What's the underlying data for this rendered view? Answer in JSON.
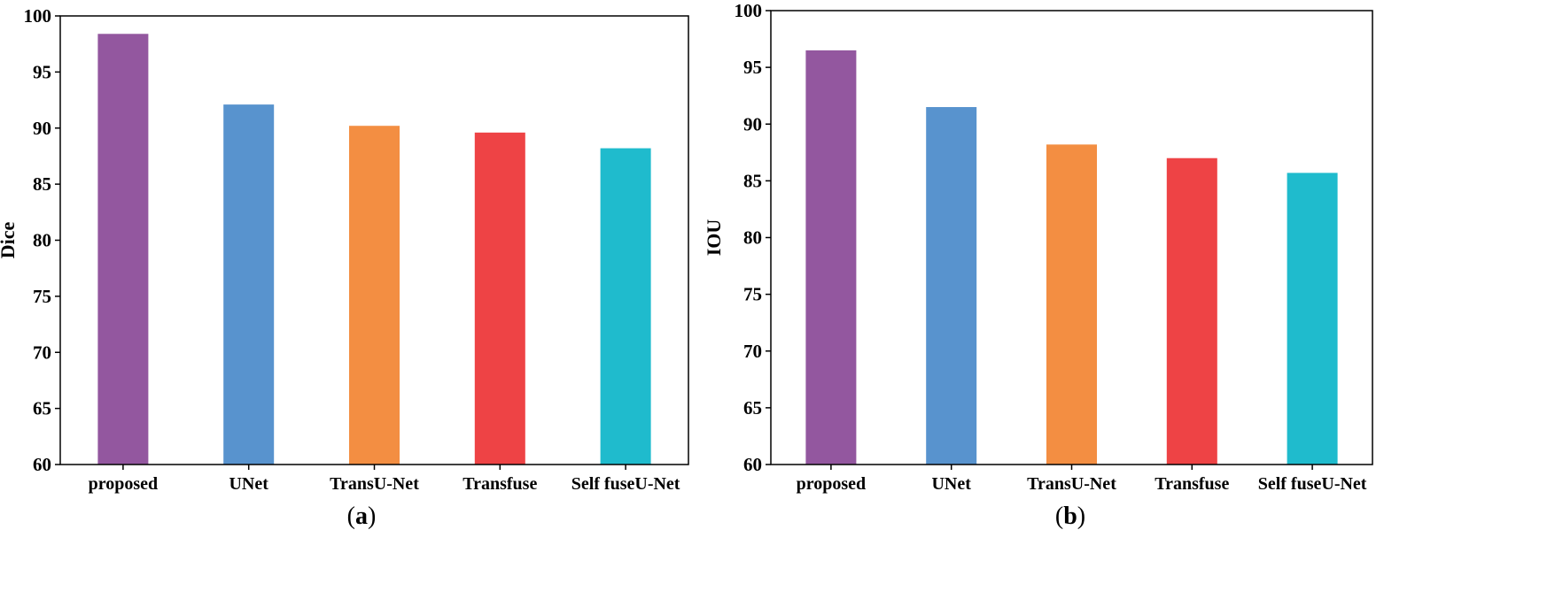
{
  "chart_data": [
    {
      "type": "bar",
      "panel_label": "a",
      "categories": [
        "proposed",
        "UNet",
        "TransU-Net",
        "Transfuse",
        "Self fuseU-Net"
      ],
      "values": [
        98.4,
        92.1,
        90.2,
        89.6,
        88.2
      ],
      "colors": [
        "#93579f",
        "#5893ce",
        "#f38e42",
        "#ee4345",
        "#1fbbcd"
      ],
      "title": "",
      "xlabel": "",
      "ylabel": "Dice",
      "ylim": [
        60,
        100
      ],
      "yticks": [
        "60",
        "65",
        "70",
        "75",
        "80",
        "85",
        "90",
        "95",
        "100"
      ],
      "grid": false
    },
    {
      "type": "bar",
      "panel_label": "b",
      "categories": [
        "proposed",
        "UNet",
        "TransU-Net",
        "Transfuse",
        "Self fuseU-Net"
      ],
      "values": [
        96.5,
        91.5,
        88.2,
        87.0,
        85.7
      ],
      "colors": [
        "#93579f",
        "#5893ce",
        "#f38e42",
        "#ee4345",
        "#1fbbcd"
      ],
      "title": "",
      "xlabel": "",
      "ylabel": "IOU",
      "ylim": [
        60,
        100
      ],
      "yticks": [
        "60",
        "65",
        "70",
        "75",
        "80",
        "85",
        "90",
        "95",
        "100"
      ],
      "grid": false
    }
  ]
}
